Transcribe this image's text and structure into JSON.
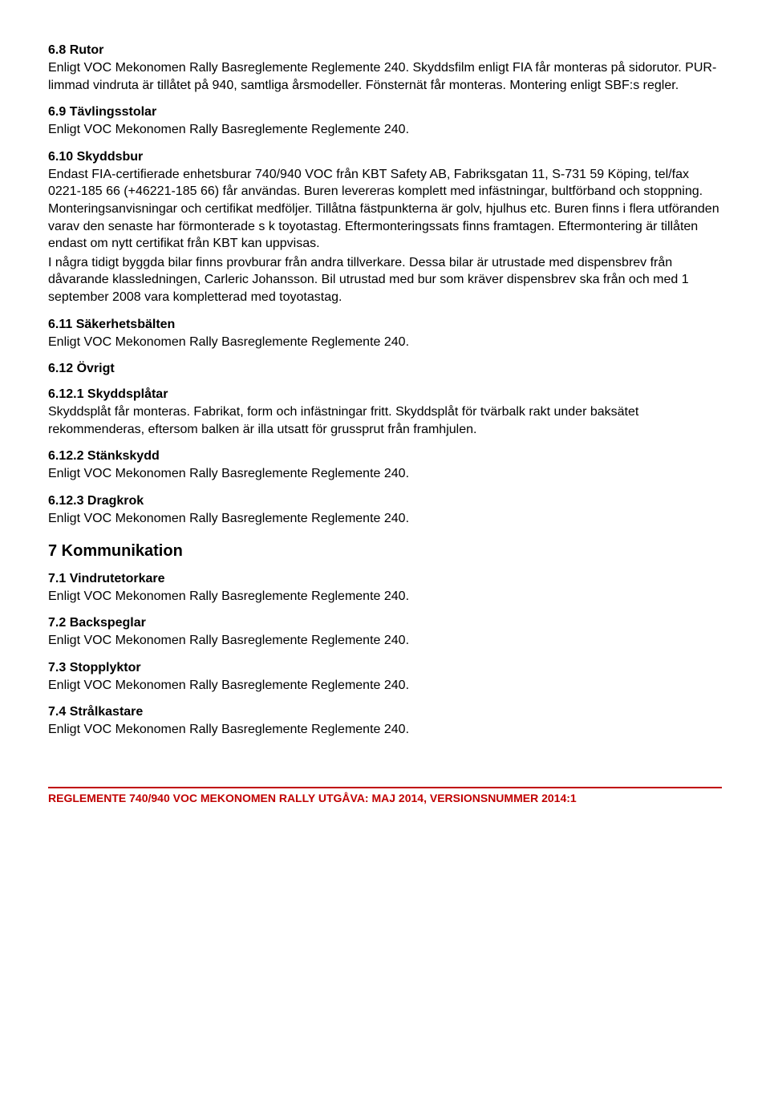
{
  "sections": [
    {
      "type": "heading",
      "text": "6.8 Rutor"
    },
    {
      "type": "body",
      "text": "Enligt VOC Mekonomen Rally Basreglemente Reglemente 240. Skyddsfilm enligt FIA får monteras på sidorutor. PUR-limmad vindruta är tillåtet på 940, samtliga årsmodeller. Fönsternät får monteras. Montering enligt SBF:s regler."
    },
    {
      "type": "heading",
      "text": "6.9 Tävlingsstolar"
    },
    {
      "type": "body",
      "text": "Enligt VOC Mekonomen Rally Basreglemente Reglemente 240."
    },
    {
      "type": "heading",
      "text": "6.10 Skyddsbur"
    },
    {
      "type": "body",
      "text": "Endast FIA-certifierade enhetsburar 740/940 VOC från KBT Safety AB, Fabriksgatan 11, S-731 59 Köping, tel/fax 0221-185 66 (+46221-185 66) får användas. Buren levereras komplett med infästningar, bultförband och stoppning. Monteringsanvisningar och certifikat medföljer. Tillåtna fästpunkterna är golv, hjulhus etc. Buren finns i flera utföranden varav den senaste har förmonterade s k toyotastag. Eftermonteringssats finns framtagen. Eftermontering är tillåten endast om nytt certifikat från KBT kan uppvisas."
    },
    {
      "type": "body",
      "text": "I några tidigt byggda bilar finns provburar från andra tillverkare. Dessa bilar är utrustade med dispensbrev från dåvarande klassledningen, Carleric Johansson. Bil utrustad med bur som kräver dispensbrev ska från och med 1 september 2008 vara kompletterad med toyotastag."
    },
    {
      "type": "heading",
      "text": "6.11 Säkerhetsbälten"
    },
    {
      "type": "body",
      "text": "Enligt VOC Mekonomen Rally Basreglemente Reglemente 240."
    },
    {
      "type": "heading",
      "text": "6.12 Övrigt"
    },
    {
      "type": "heading",
      "text": "6.12.1 Skyddsplåtar"
    },
    {
      "type": "body",
      "text": "Skyddsplåt får monteras. Fabrikat, form och infästningar fritt. Skyddsplåt för tvärbalk rakt under baksätet rekommenderas, eftersom balken är illa utsatt för grussprut från framhjulen."
    },
    {
      "type": "heading",
      "text": "6.12.2 Stänkskydd"
    },
    {
      "type": "body",
      "text": "Enligt VOC Mekonomen Rally Basreglemente Reglemente 240."
    },
    {
      "type": "heading",
      "text": "6.12.3 Dragkrok"
    },
    {
      "type": "body",
      "text": "Enligt VOC Mekonomen Rally Basreglemente Reglemente 240."
    },
    {
      "type": "major",
      "text": "7 Kommunikation"
    },
    {
      "type": "heading",
      "text": "7.1 Vindrutetorkare"
    },
    {
      "type": "body",
      "text": "Enligt VOC Mekonomen Rally Basreglemente Reglemente 240."
    },
    {
      "type": "heading",
      "text": "7.2 Backspeglar"
    },
    {
      "type": "body",
      "text": "Enligt VOC Mekonomen Rally Basreglemente Reglemente 240."
    },
    {
      "type": "heading",
      "text": "7.3 Stopplyktor"
    },
    {
      "type": "body",
      "text": "Enligt VOC Mekonomen Rally Basreglemente Reglemente 240."
    },
    {
      "type": "heading",
      "text": "7.4 Strålkastare"
    },
    {
      "type": "body",
      "text": "Enligt VOC Mekonomen Rally Basreglemente Reglemente 240."
    }
  ],
  "footer": "REGLEMENTE 740/940 VOC MEKONOMEN RALLY UTGÅVA: MAJ 2014, VERSIONSNUMMER 2014:1",
  "colors": {
    "text": "#000000",
    "accent": "#c00000",
    "background": "#ffffff"
  },
  "font": {
    "family": "Arial",
    "body_size": 16,
    "heading_size": 16,
    "major_size": 20,
    "footer_size": 14
  }
}
